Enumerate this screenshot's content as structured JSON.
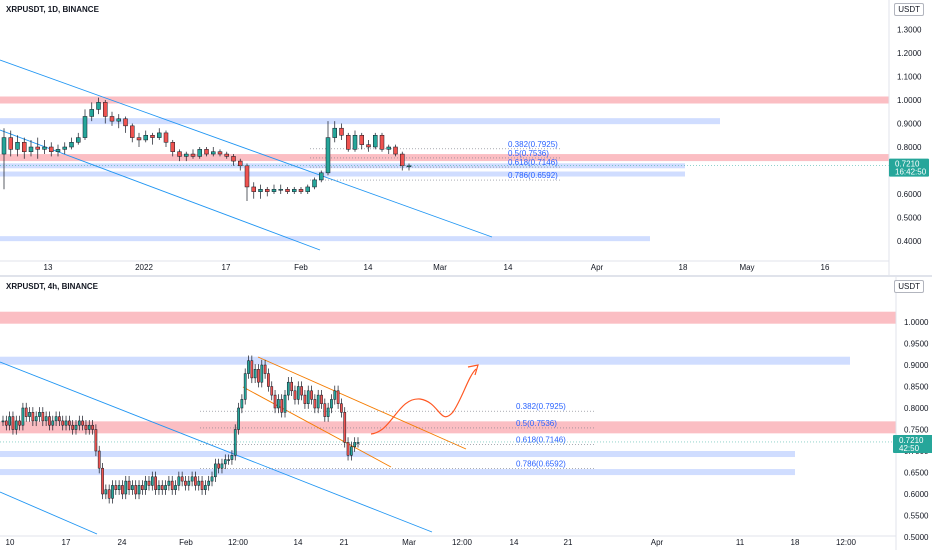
{
  "chart_data": [
    {
      "type": "candlestick",
      "legend": "XRPUSDT, 1D, BINANCE",
      "currency": "USDT",
      "price_ticks": [
        "1.3000",
        "1.2000",
        "1.1000",
        "1.0000",
        "0.9000",
        "0.8000",
        "0.7000",
        "0.6000",
        "0.5000",
        "0.4000"
      ],
      "time_ticks": [
        "13",
        "2022",
        "17",
        "Feb",
        "14",
        "Mar",
        "14",
        "Apr",
        "18",
        "May",
        "16"
      ],
      "last_price": "0.7210",
      "countdown": "16:42:50",
      "fib_levels": [
        "0.382(0.7925)",
        "0.5(0.7536)",
        "0.618(0.7146)",
        "0.786(0.6592)"
      ],
      "resistance_zones": [
        1.0,
        0.755
      ],
      "support_zones": [
        0.91,
        0.72,
        0.685,
        0.41
      ],
      "candles": [
        [
          0.77,
          0.84,
          0.88,
          0.62
        ],
        [
          0.84,
          0.79,
          0.87,
          0.76
        ],
        [
          0.79,
          0.82,
          0.85,
          0.76
        ],
        [
          0.82,
          0.78,
          0.84,
          0.75
        ],
        [
          0.78,
          0.8,
          0.83,
          0.76
        ],
        [
          0.8,
          0.79,
          0.84,
          0.75
        ],
        [
          0.79,
          0.8,
          0.83,
          0.77
        ],
        [
          0.8,
          0.78,
          0.82,
          0.76
        ],
        [
          0.78,
          0.79,
          0.81,
          0.76
        ],
        [
          0.79,
          0.8,
          0.82,
          0.77
        ],
        [
          0.8,
          0.82,
          0.84,
          0.79
        ],
        [
          0.82,
          0.84,
          0.86,
          0.81
        ],
        [
          0.84,
          0.93,
          0.96,
          0.83
        ],
        [
          0.93,
          0.96,
          0.99,
          0.91
        ],
        [
          0.96,
          0.99,
          1.01,
          0.94
        ],
        [
          0.99,
          0.93,
          1.0,
          0.9
        ],
        [
          0.93,
          0.91,
          0.95,
          0.89
        ],
        [
          0.91,
          0.92,
          0.94,
          0.88
        ],
        [
          0.92,
          0.89,
          0.93,
          0.86
        ],
        [
          0.89,
          0.84,
          0.9,
          0.82
        ],
        [
          0.84,
          0.83,
          0.86,
          0.8
        ],
        [
          0.83,
          0.85,
          0.87,
          0.82
        ],
        [
          0.85,
          0.84,
          0.86,
          0.81
        ],
        [
          0.84,
          0.86,
          0.88,
          0.83
        ],
        [
          0.86,
          0.82,
          0.87,
          0.8
        ],
        [
          0.82,
          0.78,
          0.83,
          0.76
        ],
        [
          0.78,
          0.76,
          0.79,
          0.74
        ],
        [
          0.76,
          0.77,
          0.78,
          0.74
        ],
        [
          0.77,
          0.76,
          0.79,
          0.75
        ],
        [
          0.76,
          0.79,
          0.8,
          0.75
        ],
        [
          0.79,
          0.77,
          0.8,
          0.76
        ],
        [
          0.77,
          0.78,
          0.8,
          0.76
        ],
        [
          0.78,
          0.77,
          0.79,
          0.76
        ],
        [
          0.77,
          0.76,
          0.78,
          0.75
        ],
        [
          0.76,
          0.74,
          0.77,
          0.72
        ],
        [
          0.74,
          0.72,
          0.75,
          0.7
        ],
        [
          0.72,
          0.63,
          0.73,
          0.57
        ],
        [
          0.63,
          0.61,
          0.65,
          0.58
        ],
        [
          0.61,
          0.62,
          0.64,
          0.58
        ],
        [
          0.62,
          0.61,
          0.63,
          0.59
        ],
        [
          0.61,
          0.62,
          0.64,
          0.6
        ],
        [
          0.62,
          0.62,
          0.64,
          0.6
        ],
        [
          0.62,
          0.61,
          0.63,
          0.6
        ],
        [
          0.61,
          0.62,
          0.63,
          0.6
        ],
        [
          0.62,
          0.61,
          0.63,
          0.6
        ],
        [
          0.61,
          0.63,
          0.64,
          0.6
        ],
        [
          0.63,
          0.66,
          0.67,
          0.62
        ],
        [
          0.66,
          0.69,
          0.7,
          0.65
        ],
        [
          0.69,
          0.84,
          0.91,
          0.68
        ],
        [
          0.84,
          0.88,
          0.91,
          0.82
        ],
        [
          0.88,
          0.85,
          0.9,
          0.83
        ],
        [
          0.85,
          0.79,
          0.86,
          0.78
        ],
        [
          0.79,
          0.85,
          0.87,
          0.78
        ],
        [
          0.85,
          0.81,
          0.86,
          0.79
        ],
        [
          0.81,
          0.8,
          0.83,
          0.78
        ],
        [
          0.8,
          0.85,
          0.86,
          0.79
        ],
        [
          0.85,
          0.79,
          0.86,
          0.78
        ],
        [
          0.79,
          0.8,
          0.81,
          0.77
        ],
        [
          0.8,
          0.77,
          0.81,
          0.76
        ],
        [
          0.77,
          0.72,
          0.78,
          0.7
        ],
        [
          0.72,
          0.72,
          0.73,
          0.7
        ]
      ]
    },
    {
      "type": "candlestick",
      "legend": "XRPUSDT, 4h, BINANCE",
      "currency": "USDT",
      "price_ticks": [
        "1.0000",
        "0.9500",
        "0.9000",
        "0.8500",
        "0.8000",
        "0.7500",
        "0.7000",
        "0.6500",
        "0.6000",
        "0.5500",
        "0.5000"
      ],
      "time_ticks": [
        "10",
        "17",
        "24",
        "Feb",
        "12:00",
        "14",
        "21",
        "Mar",
        "12:00",
        "14",
        "21",
        "Apr",
        "11",
        "18",
        "12:00"
      ],
      "last_price": "0.7210",
      "countdown": "42:50",
      "fib_levels": [
        "0.382(0.7925)",
        "0.5(0.7536)",
        "0.618(0.7146)",
        "0.786(0.6592)"
      ],
      "resistance_zones": [
        1.01,
        0.755
      ],
      "support_zones": [
        0.91,
        0.693,
        0.651
      ],
      "close_series": [
        0.77,
        0.76,
        0.78,
        0.75,
        0.77,
        0.76,
        0.8,
        0.78,
        0.79,
        0.77,
        0.78,
        0.79,
        0.77,
        0.78,
        0.76,
        0.77,
        0.78,
        0.77,
        0.76,
        0.77,
        0.76,
        0.75,
        0.76,
        0.77,
        0.76,
        0.75,
        0.76,
        0.75,
        0.7,
        0.66,
        0.6,
        0.61,
        0.59,
        0.62,
        0.61,
        0.62,
        0.6,
        0.63,
        0.61,
        0.62,
        0.6,
        0.62,
        0.61,
        0.63,
        0.62,
        0.64,
        0.61,
        0.62,
        0.61,
        0.62,
        0.63,
        0.61,
        0.62,
        0.64,
        0.63,
        0.62,
        0.63,
        0.64,
        0.62,
        0.63,
        0.61,
        0.62,
        0.63,
        0.64,
        0.67,
        0.66,
        0.67,
        0.68,
        0.68,
        0.69,
        0.75,
        0.8,
        0.82,
        0.88,
        0.91,
        0.87,
        0.89,
        0.86,
        0.9,
        0.88,
        0.85,
        0.83,
        0.8,
        0.82,
        0.79,
        0.83,
        0.86,
        0.84,
        0.82,
        0.85,
        0.83,
        0.81,
        0.84,
        0.82,
        0.8,
        0.83,
        0.81,
        0.78,
        0.8,
        0.82,
        0.84,
        0.81,
        0.79,
        0.72,
        0.69,
        0.71,
        0.72,
        0.72
      ],
      "annotation": "orange projection arrow"
    }
  ]
}
